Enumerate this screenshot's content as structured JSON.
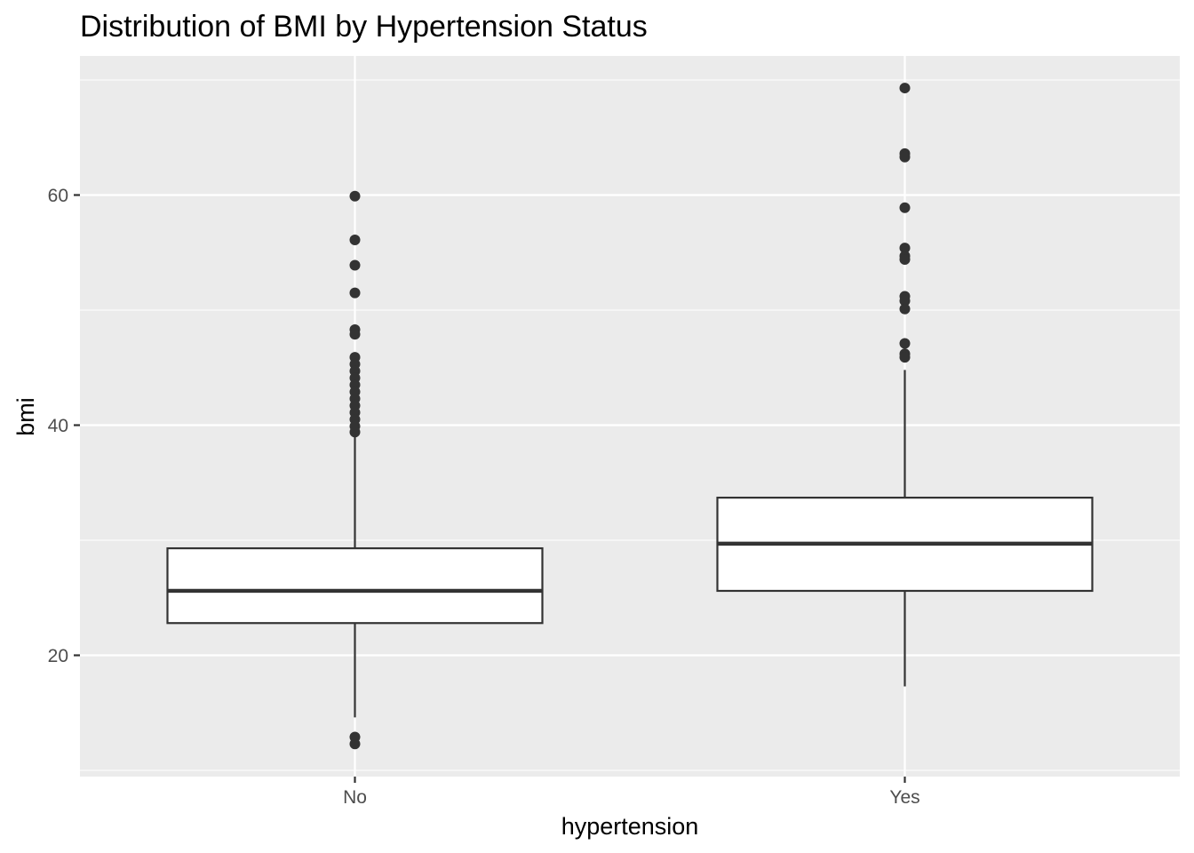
{
  "chart_data": {
    "type": "boxplot",
    "title": "Distribution of BMI by Hypertension Status",
    "xlabel": "hypertension",
    "ylabel": "bmi",
    "categories": [
      "No",
      "Yes"
    ],
    "ylim": [
      10,
      70
    ],
    "yticks": [
      20,
      40,
      60
    ],
    "grid": true,
    "legend": "none",
    "colors": {
      "panel": "#ebebeb",
      "grid": "#ffffff",
      "box_fill": "#ffffff",
      "box_line": "#333333",
      "outlier": "#333333",
      "tick_text": "#4d4d4d"
    },
    "boxes": [
      {
        "category": "No",
        "whisker_low": 14.6,
        "q1": 22.8,
        "median": 25.6,
        "q3": 29.3,
        "whisker_high": 39.1,
        "outliers": [
          59.9,
          56.1,
          53.9,
          51.5,
          48.3,
          47.9,
          45.9,
          45.3,
          44.7,
          44.1,
          43.5,
          42.9,
          42.3,
          41.7,
          41.1,
          40.5,
          39.9,
          39.4,
          12.9,
          12.3
        ]
      },
      {
        "category": "Yes",
        "whisker_low": 17.3,
        "q1": 25.6,
        "median": 29.7,
        "q3": 33.7,
        "whisker_high": 44.8,
        "outliers": [
          69.3,
          63.6,
          63.3,
          58.9,
          55.4,
          54.7,
          54.4,
          51.2,
          50.8,
          50.1,
          47.1,
          46.2,
          45.9
        ]
      }
    ]
  }
}
